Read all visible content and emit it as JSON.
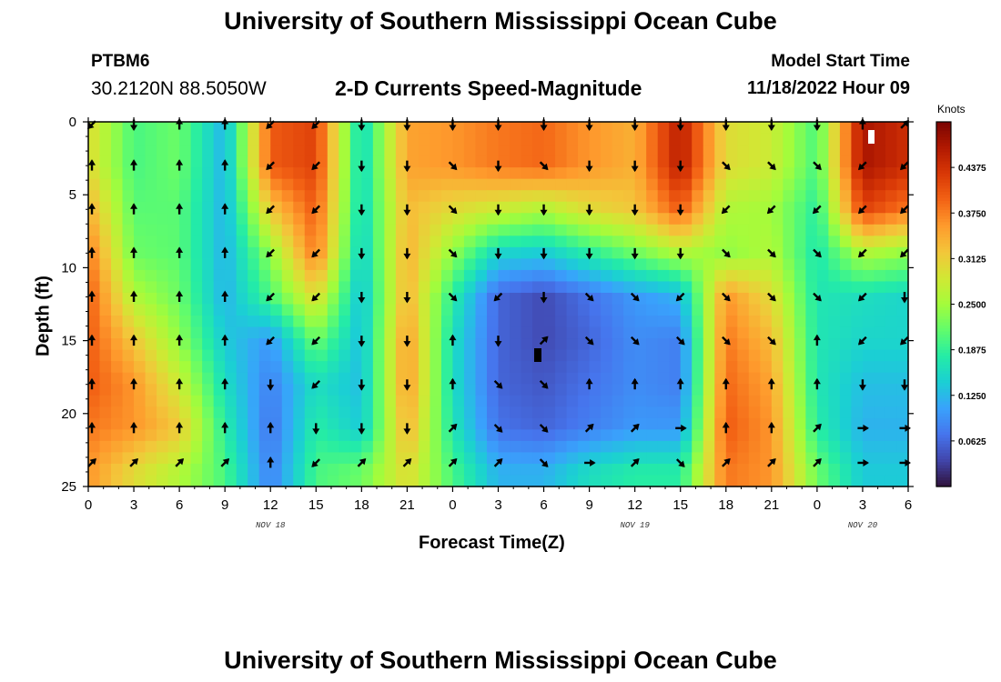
{
  "header": {
    "title": "University of Southern Mississippi Ocean Cube",
    "station_id": "PTBM6",
    "coordinates": "30.2120N  88.5050W",
    "subtitle": "2-D Currents Speed-Magnitude",
    "model_label": "Model Start Time",
    "model_value": "11/18/2022 Hour 09"
  },
  "footer": {
    "title": "University of Southern Mississippi Ocean Cube"
  },
  "chart_data": {
    "type": "heatmap",
    "title": "2-D Currents Speed-Magnitude",
    "xlabel": "Forecast Time(Z)",
    "ylabel": "Depth (ft)",
    "x_tick_labels": [
      "0",
      "3",
      "6",
      "9",
      "12",
      "15",
      "18",
      "21",
      "0",
      "3",
      "6",
      "9",
      "12",
      "15",
      "18",
      "21",
      "0",
      "3",
      "6"
    ],
    "x_hours": [
      0,
      3,
      6,
      9,
      12,
      15,
      18,
      21,
      24,
      27,
      30,
      33,
      36,
      39,
      42,
      45,
      48,
      51,
      54
    ],
    "date_labels": [
      {
        "label": "NOV 18",
        "hour": 12
      },
      {
        "label": "NOV 19",
        "hour": 36
      },
      {
        "label": "NOV 20",
        "hour": 51
      }
    ],
    "y_ticks": [
      0,
      5,
      10,
      15,
      20,
      25
    ],
    "xlim": [
      0,
      54
    ],
    "ylim": [
      0,
      25
    ],
    "colorbar": {
      "units": "Knots",
      "ticks": [
        "0.4375",
        "0.3750",
        "0.3125",
        "0.2500",
        "0.1875",
        "0.1250",
        "0.0625"
      ],
      "tick_values": [
        0.4375,
        0.375,
        0.3125,
        0.25,
        0.1875,
        0.125,
        0.0625
      ],
      "range": [
        0.0,
        0.5
      ],
      "colors": [
        "#30123b",
        "#4145ab",
        "#4675ed",
        "#39a2fc",
        "#1bcfd4",
        "#24eca6",
        "#61fc6c",
        "#a4fc3b",
        "#d1e834",
        "#f3c63a",
        "#fe9b2d",
        "#f36315",
        "#d93806",
        "#b11901",
        "#7a0402"
      ]
    },
    "depths": [
      0,
      3,
      6,
      9,
      12,
      15,
      18,
      21,
      24
    ],
    "hours": [
      0,
      3,
      6,
      9,
      12,
      15,
      18,
      21,
      24,
      27,
      30,
      33,
      36,
      39,
      42,
      45,
      48,
      51,
      54
    ],
    "speed": [
      [
        0.3,
        0.2,
        0.22,
        0.12,
        0.4,
        0.42,
        0.15,
        0.35,
        0.36,
        0.38,
        0.39,
        0.36,
        0.34,
        0.46,
        0.3,
        0.28,
        0.2,
        0.47,
        0.44
      ],
      [
        0.3,
        0.2,
        0.22,
        0.12,
        0.4,
        0.42,
        0.15,
        0.35,
        0.36,
        0.38,
        0.39,
        0.36,
        0.34,
        0.46,
        0.3,
        0.28,
        0.2,
        0.47,
        0.44
      ],
      [
        0.34,
        0.21,
        0.21,
        0.12,
        0.32,
        0.4,
        0.15,
        0.33,
        0.3,
        0.28,
        0.26,
        0.3,
        0.32,
        0.4,
        0.26,
        0.25,
        0.18,
        0.42,
        0.38
      ],
      [
        0.38,
        0.22,
        0.21,
        0.12,
        0.24,
        0.38,
        0.14,
        0.34,
        0.24,
        0.15,
        0.14,
        0.18,
        0.22,
        0.26,
        0.24,
        0.26,
        0.17,
        0.26,
        0.24
      ],
      [
        0.4,
        0.26,
        0.22,
        0.12,
        0.2,
        0.3,
        0.13,
        0.34,
        0.18,
        0.06,
        0.04,
        0.07,
        0.1,
        0.12,
        0.36,
        0.3,
        0.17,
        0.16,
        0.15
      ],
      [
        0.4,
        0.32,
        0.24,
        0.14,
        0.1,
        0.22,
        0.13,
        0.36,
        0.16,
        0.06,
        0.04,
        0.06,
        0.09,
        0.08,
        0.38,
        0.33,
        0.17,
        0.15,
        0.15
      ],
      [
        0.4,
        0.36,
        0.28,
        0.16,
        0.08,
        0.16,
        0.13,
        0.36,
        0.16,
        0.06,
        0.05,
        0.07,
        0.09,
        0.08,
        0.39,
        0.35,
        0.17,
        0.13,
        0.13
      ],
      [
        0.38,
        0.36,
        0.32,
        0.18,
        0.07,
        0.18,
        0.14,
        0.34,
        0.17,
        0.07,
        0.06,
        0.08,
        0.1,
        0.1,
        0.4,
        0.36,
        0.18,
        0.12,
        0.12
      ],
      [
        0.36,
        0.3,
        0.26,
        0.2,
        0.08,
        0.2,
        0.22,
        0.3,
        0.2,
        0.12,
        0.12,
        0.16,
        0.18,
        0.18,
        0.38,
        0.36,
        0.22,
        0.14,
        0.14
      ]
    ],
    "direction_deg": [
      [
        225,
        180,
        0,
        0,
        225,
        225,
        180,
        180,
        180,
        180,
        180,
        180,
        180,
        180,
        180,
        180,
        180,
        0,
        45
      ],
      [
        0,
        0,
        0,
        0,
        225,
        225,
        180,
        180,
        135,
        180,
        135,
        180,
        180,
        180,
        135,
        135,
        135,
        225,
        225
      ],
      [
        0,
        0,
        0,
        0,
        225,
        225,
        180,
        180,
        135,
        180,
        180,
        180,
        180,
        180,
        225,
        225,
        225,
        225,
        225
      ],
      [
        0,
        0,
        0,
        0,
        225,
        225,
        180,
        180,
        135,
        180,
        180,
        180,
        180,
        180,
        135,
        135,
        135,
        225,
        225
      ],
      [
        0,
        0,
        0,
        0,
        225,
        225,
        180,
        180,
        135,
        225,
        180,
        135,
        135,
        225,
        135,
        135,
        135,
        225,
        180
      ],
      [
        0,
        0,
        0,
        0,
        225,
        225,
        180,
        180,
        0,
        180,
        45,
        135,
        135,
        135,
        135,
        135,
        0,
        225,
        225
      ],
      [
        0,
        0,
        0,
        0,
        180,
        225,
        180,
        180,
        0,
        135,
        135,
        0,
        0,
        0,
        0,
        0,
        0,
        180,
        180
      ],
      [
        0,
        0,
        0,
        0,
        0,
        180,
        180,
        180,
        45,
        135,
        135,
        45,
        45,
        90,
        0,
        0,
        45,
        90,
        90
      ],
      [
        45,
        45,
        45,
        45,
        0,
        225,
        45,
        45,
        45,
        45,
        135,
        90,
        45,
        135,
        45,
        45,
        45,
        90,
        90
      ]
    ]
  }
}
